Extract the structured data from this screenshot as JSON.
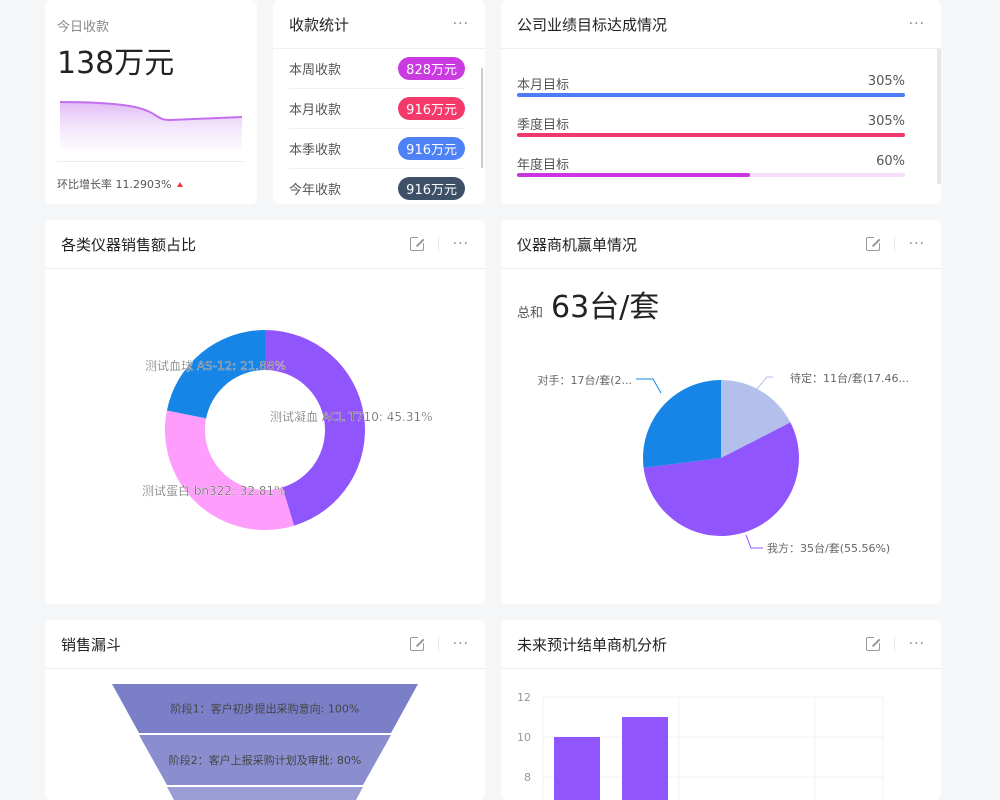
{
  "today": {
    "label": "今日收款",
    "value": "138万元",
    "growth": "环比增长率 11.2903%",
    "trend_icon": "up-triangle-icon"
  },
  "collection": {
    "title": "收款统计",
    "items": [
      {
        "label": "本周收款",
        "value": "828万元",
        "color": "#c93ae0"
      },
      {
        "label": "本月收款",
        "value": "916万元",
        "color": "#f43a6b"
      },
      {
        "label": "本季收款",
        "value": "916万元",
        "color": "#4e80f6"
      },
      {
        "label": "今年收款",
        "value": "916万元",
        "color": "#3d5068"
      }
    ]
  },
  "goals": {
    "title": "公司业绩目标达成情况",
    "items": [
      {
        "label": "本月目标",
        "value": "305%",
        "percent": 100,
        "color": "#4e7cf6",
        "track": "#dde6fd"
      },
      {
        "label": "季度目标",
        "value": "305%",
        "percent": 100,
        "color": "#f0386b",
        "track": "#fdd9e3"
      },
      {
        "label": "年度目标",
        "value": "60%",
        "percent": 60,
        "color": "#c936e0",
        "track": "#f6dcfa"
      }
    ]
  },
  "donut": {
    "title": "各类仪器销售额占比",
    "chart_data": {
      "type": "pie",
      "variant": "donut",
      "slices": [
        {
          "name": "测试凝血 ACL T710",
          "value": 45.31,
          "label": "测试凝血 ACL T710: 45.31%",
          "color": "#9155fd"
        },
        {
          "name": "测试蛋白 bn322",
          "value": 32.81,
          "label": "测试蛋白 bn322: 32.81%",
          "color": "#ff9dfc"
        },
        {
          "name": "测试血球 AS-12",
          "value": 21.88,
          "label": "测试血球 AS-12: 21.88%",
          "color": "#1685e6"
        }
      ]
    }
  },
  "win": {
    "title": "仪器商机赢单情况",
    "total_label": "总和",
    "total_value": "63台/套",
    "chart_data": {
      "type": "pie",
      "slices": [
        {
          "name": "待定",
          "value": 11,
          "label": "待定：11台/套(17.46...",
          "color": "#b3c0ec"
        },
        {
          "name": "我方",
          "value": 35,
          "label": "我方：35台/套(55.56%)",
          "color": "#9155fd"
        },
        {
          "name": "对手",
          "value": 17,
          "label": "对手：17台/套(2...",
          "color": "#1685e6"
        }
      ]
    }
  },
  "funnel": {
    "title": "销售漏斗",
    "stages": [
      {
        "label": "阶段1：客户初步提出采购意向: 100%",
        "color": "#7b7fc8"
      },
      {
        "label": "阶段2：客户上报采购计划及审批: 80%",
        "color": "#8a8ecf"
      },
      {
        "label": "",
        "color": "#9b9ed6"
      }
    ]
  },
  "forecast": {
    "title": "未来预计结单商机分析",
    "chart_data": {
      "type": "bar",
      "yticks": [
        "12",
        "10",
        "8"
      ],
      "values": [
        10,
        11
      ],
      "color": "#9155fd"
    }
  }
}
